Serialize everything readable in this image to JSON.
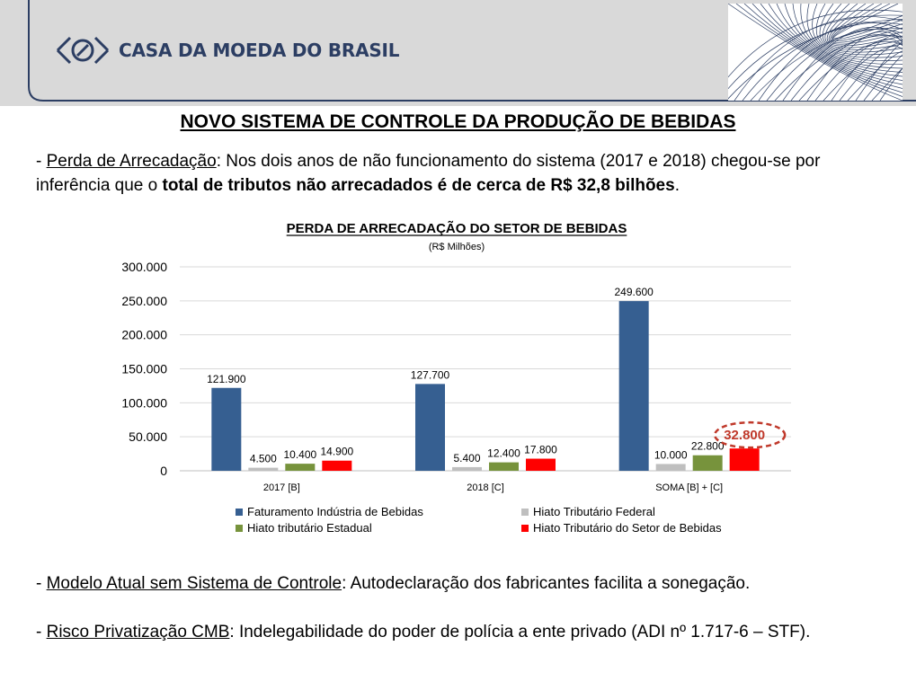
{
  "header": {
    "logo_text": "CASA DA MOEDA DO BRASIL",
    "colors": {
      "header_bg": "#d9d9d9",
      "brand_navy": "#2c3e63"
    }
  },
  "title": "NOVO SISTEMA DE CONTROLE DA PRODUÇÃO DE BEBIDAS",
  "intro": {
    "prefix": "- ",
    "label": "Perda de Arrecadação",
    "text": ": Nos dois anos de não funcionamento do sistema (2017 e 2018) chegou-se por inferência que o ",
    "bold": "total de tributos não arrecadados é de cerca de R$ 32,8 bilhões",
    "suffix": "."
  },
  "chart_data": {
    "type": "bar",
    "title": "PERDA DE ARRECADAÇÃO DO SETOR DE BEBIDAS",
    "subtitle": "(R$ Milhões)",
    "categories": [
      "2017 [B]",
      "2018 [C]",
      "SOMA [B] + [C]"
    ],
    "series": [
      {
        "name": "Faturamento Indústria de Bebidas",
        "values": [
          121900,
          127700,
          249600
        ],
        "labels": [
          "121.900",
          "127.700",
          "249.600"
        ],
        "color": "#365f91"
      },
      {
        "name": "Hiato Tributário Federal",
        "values": [
          4500,
          5400,
          10000
        ],
        "labels": [
          "4.500",
          "5.400",
          "10.000"
        ],
        "color": "#bfbfbf"
      },
      {
        "name": "Hiato tributário Estadual",
        "values": [
          10400,
          12400,
          22800
        ],
        "labels": [
          "10.400",
          "12.400",
          "22.800"
        ],
        "color": "#77933c"
      },
      {
        "name": "Hiato Tributário do Setor de Bebidas",
        "values": [
          14900,
          17800,
          32800
        ],
        "labels": [
          "14.900",
          "17.800",
          "32.800"
        ],
        "color": "#ff0000"
      }
    ],
    "ylim": [
      0,
      300000
    ],
    "yticks": [
      0,
      50000,
      100000,
      150000,
      200000,
      250000,
      300000
    ],
    "ytick_labels": [
      "0",
      "50.000",
      "100.000",
      "150.000",
      "200.000",
      "250.000",
      "300.000"
    ],
    "grid": true,
    "legend": "bottom",
    "legend_order": [
      0,
      1,
      2,
      3
    ],
    "highlight": {
      "value_label": "32.800",
      "color": "#c0392b"
    }
  },
  "bullet2": {
    "prefix": "- ",
    "label": "Modelo Atual sem Sistema de Controle",
    "text": ": Autodeclaração dos fabricantes facilita a sonegação."
  },
  "bullet3": {
    "prefix": "- ",
    "label": "Risco Privatização CMB",
    "text": ": Indelegabilidade do poder de polícia a ente privado (ADI nº 1.717-6 – STF)."
  }
}
